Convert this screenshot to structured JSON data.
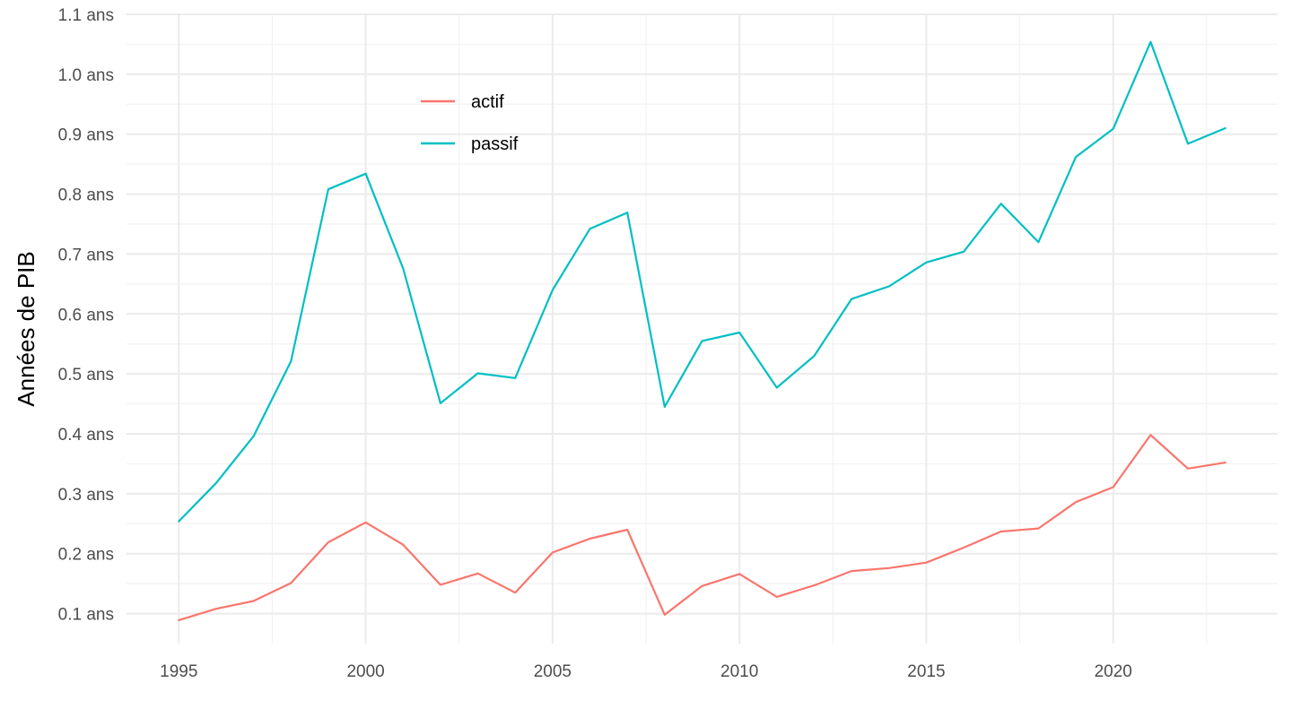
{
  "chart_data": {
    "type": "line",
    "ylabel": "Années de PIB",
    "xlabel": "",
    "y_unit_suffix": " ans",
    "xlim": [
      1993.6,
      2024.4
    ],
    "ylim": [
      0.05,
      1.1
    ],
    "x_ticks": [
      1995,
      2000,
      2005,
      2010,
      2015,
      2020
    ],
    "y_ticks": [
      0.1,
      0.2,
      0.3,
      0.4,
      0.5,
      0.6,
      0.7,
      0.8,
      0.9,
      1.0,
      1.1
    ],
    "y_tick_labels": [
      "0.1 ans",
      "0.2 ans",
      "0.3 ans",
      "0.4 ans",
      "0.5 ans",
      "0.6 ans",
      "0.7 ans",
      "0.8 ans",
      "0.9 ans",
      "1.0 ans",
      "1.1 ans"
    ],
    "grid": true,
    "legend_position": "top-left inside",
    "x": [
      1995,
      1996,
      1997,
      1998,
      1999,
      2000,
      2001,
      2002,
      2003,
      2004,
      2005,
      2006,
      2007,
      2008,
      2009,
      2010,
      2011,
      2012,
      2013,
      2014,
      2015,
      2016,
      2017,
      2018,
      2019,
      2020,
      2021,
      2022,
      2023
    ],
    "series": [
      {
        "name": "actif",
        "color": "#F8766D",
        "values": [
          0.089,
          0.108,
          0.121,
          0.151,
          0.219,
          0.252,
          0.215,
          0.148,
          0.167,
          0.135,
          0.202,
          0.225,
          0.24,
          0.098,
          0.146,
          0.166,
          0.128,
          0.147,
          0.171,
          0.176,
          0.185,
          0.21,
          0.237,
          0.242,
          0.286,
          0.311,
          0.398,
          0.342,
          0.352
        ]
      },
      {
        "name": "passif",
        "color": "#00BFC4",
        "values": [
          0.254,
          0.318,
          0.396,
          0.521,
          0.808,
          0.834,
          0.676,
          0.451,
          0.501,
          0.493,
          0.64,
          0.742,
          0.769,
          0.445,
          0.555,
          0.569,
          0.477,
          0.53,
          0.625,
          0.646,
          0.686,
          0.704,
          0.784,
          0.72,
          0.862,
          0.909,
          1.054,
          0.884,
          0.91
        ]
      }
    ]
  }
}
